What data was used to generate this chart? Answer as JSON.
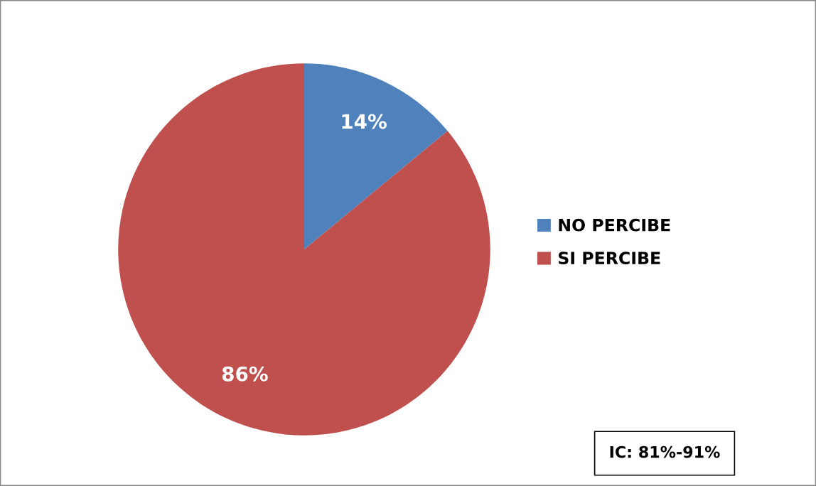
{
  "chart_data": {
    "type": "pie",
    "categories": [
      "NO PERCIBE",
      "SI PERCIBE"
    ],
    "values": [
      14,
      86
    ],
    "colors": [
      "#4f81bd",
      "#c0504d"
    ],
    "data_labels": true,
    "value_labels": [
      "14%",
      "86%"
    ],
    "legend": "right",
    "annotations": [
      "IC: 81%-91%"
    ]
  }
}
